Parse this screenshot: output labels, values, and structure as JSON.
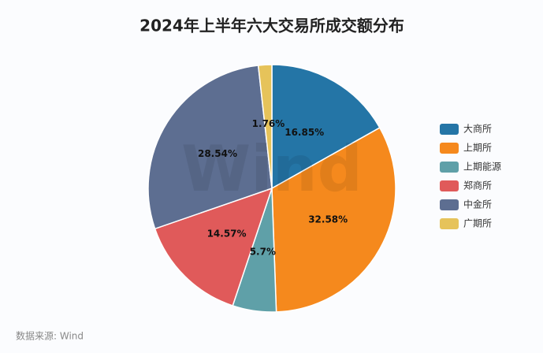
{
  "chart_data": {
    "type": "pie",
    "title": "2024年上半年六大交易所成交额分布",
    "categories": [
      "大商所",
      "上期所",
      "上期能源",
      "郑商所",
      "中金所",
      "广期所"
    ],
    "values": [
      16.85,
      32.58,
      5.7,
      14.57,
      28.54,
      1.76
    ],
    "value_labels": [
      "16.85%",
      "32.58%",
      "5.7%",
      "14.57%",
      "28.54%",
      "1.76%"
    ],
    "colors": [
      "#2475a6",
      "#f5891d",
      "#5fa0a8",
      "#e05a5a",
      "#5d6e91",
      "#e6c35a"
    ],
    "legend": "right",
    "source": "数据来源: Wind",
    "watermark": "Wind"
  }
}
